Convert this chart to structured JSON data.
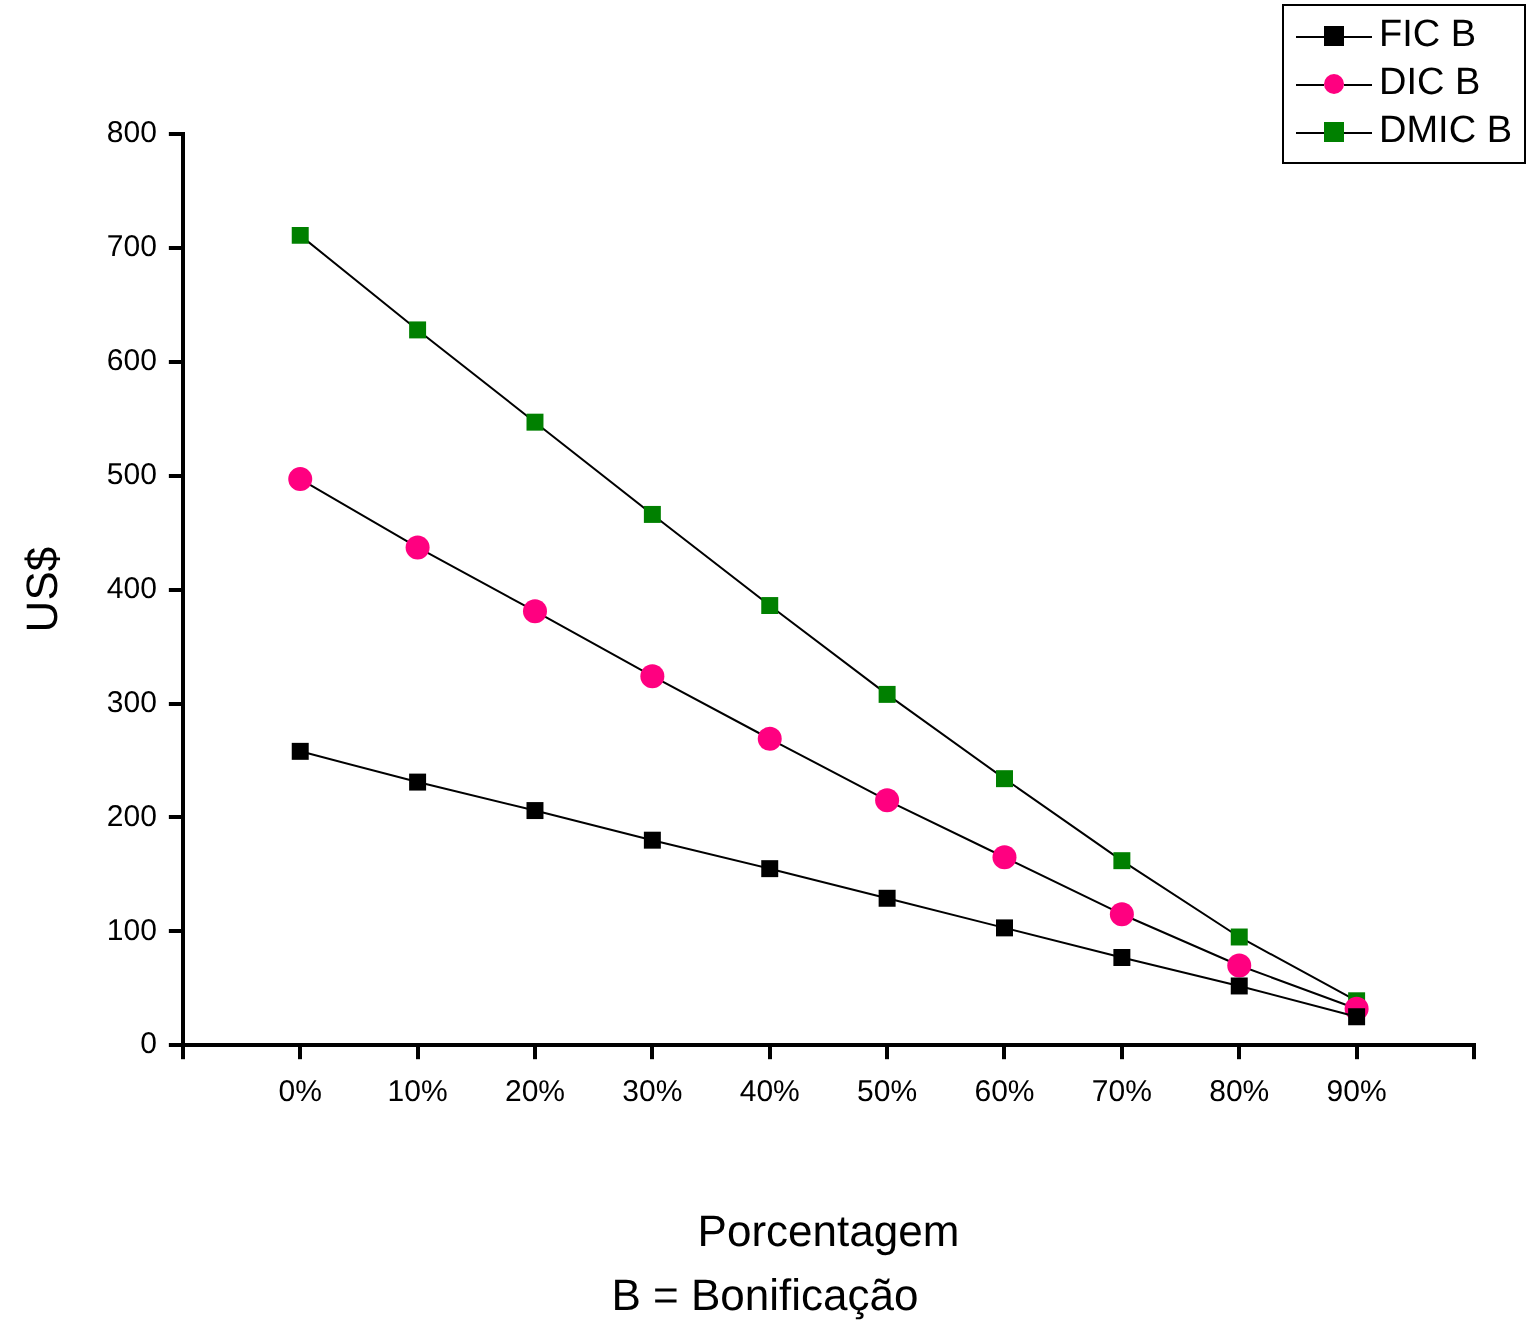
{
  "chart_data": {
    "type": "line",
    "xlabel": "Porcentagem",
    "ylabel": "US$",
    "annotations": [
      "B = Bonificação"
    ],
    "x": [
      0,
      10,
      20,
      30,
      40,
      50,
      60,
      70,
      80,
      90
    ],
    "xlim": [
      -10,
      100
    ],
    "xticks": [
      {
        "value": -10,
        "label": null
      },
      {
        "value": 0,
        "label": "0%"
      },
      {
        "value": 10,
        "label": "10%"
      },
      {
        "value": 20,
        "label": "20%"
      },
      {
        "value": 30,
        "label": "30%"
      },
      {
        "value": 40,
        "label": "40%"
      },
      {
        "value": 50,
        "label": "50%"
      },
      {
        "value": 60,
        "label": "60%"
      },
      {
        "value": 70,
        "label": "70%"
      },
      {
        "value": 80,
        "label": "80%"
      },
      {
        "value": 90,
        "label": "90%"
      },
      {
        "value": 100,
        "label": null
      }
    ],
    "ylim": [
      0,
      800
    ],
    "yticks": [
      0,
      100,
      200,
      300,
      400,
      500,
      600,
      700,
      800
    ],
    "grid": false,
    "legend": "top right",
    "line_style": "solid",
    "series": [
      {
        "name": "FIC B",
        "color": "#000000",
        "marker": "square",
        "values": [
          258,
          231,
          206,
          180,
          155,
          129,
          103,
          77,
          52,
          25
        ]
      },
      {
        "name": "DIC B",
        "color": "#ff0080",
        "marker": "circle",
        "values": [
          497,
          437,
          381,
          324,
          269,
          215,
          165,
          115,
          70,
          32
        ]
      },
      {
        "name": "DMIC B",
        "color": "#008000",
        "marker": "square",
        "values": [
          711,
          628,
          547,
          466,
          386,
          308,
          234,
          162,
          95,
          39
        ]
      }
    ]
  }
}
